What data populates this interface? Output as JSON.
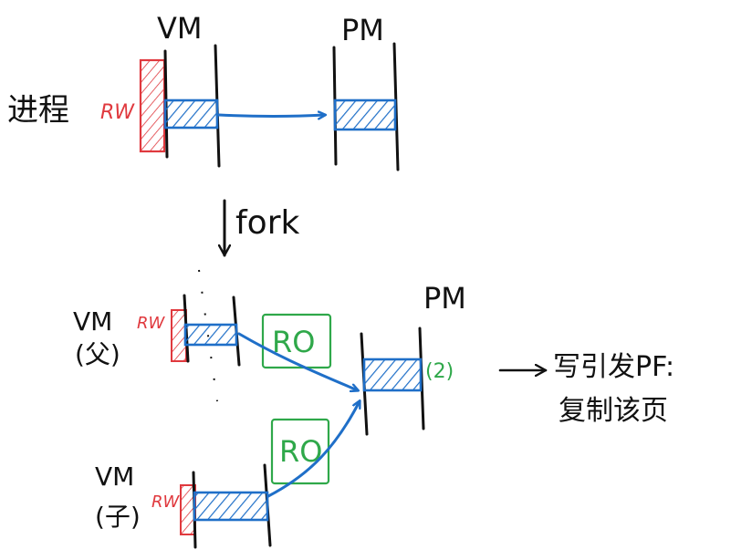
{
  "colors": {
    "ink": "#111111",
    "blue": "#1f6fc8",
    "red": "#e0393e",
    "green": "#2fa84a"
  },
  "top": {
    "process_label": "进程",
    "rw_label": "RW",
    "vm_label": "VM",
    "pm_label": "PM"
  },
  "fork_label": "fork",
  "bottom": {
    "pm_label": "PM",
    "parent_vm_label": "VM",
    "parent_tag": "(父)",
    "parent_rw": "RW",
    "child_vm_label": "VM",
    "child_tag": "(子)",
    "child_rw": "RW",
    "ro_top": "RO",
    "ro_bottom": "RO",
    "refcount": "(2)",
    "result_line1": "写引发PF:",
    "result_line2": "复制该页"
  }
}
